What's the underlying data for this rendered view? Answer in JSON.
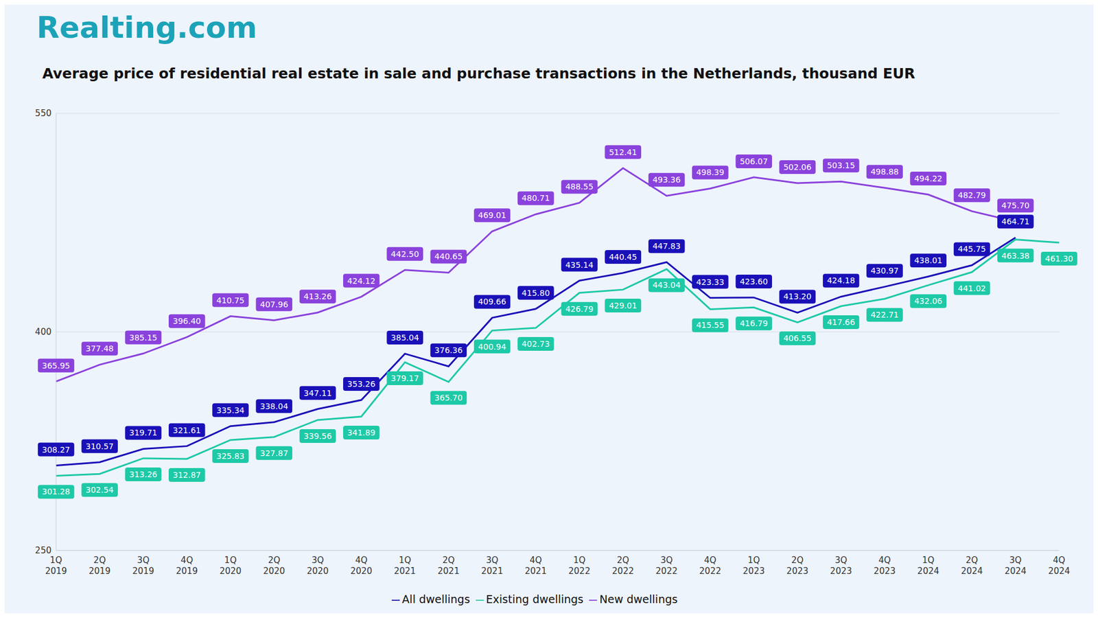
{
  "chart_data": {
    "type": "line",
    "title": "Average price of residential real estate in sale and purchase transactions in the Netherlands, thousand EUR",
    "annotations": [
      "Realting.com"
    ],
    "categories": [
      "1Q 2019",
      "2Q 2019",
      "3Q 2019",
      "4Q 2019",
      "1Q 2020",
      "2Q 2020",
      "3Q 2020",
      "4Q 2020",
      "1Q 2021",
      "2Q 2021",
      "3Q 2021",
      "4Q 2021",
      "1Q 2022",
      "2Q 2022",
      "3Q 2022",
      "4Q 2022",
      "1Q 2023",
      "2Q 2023",
      "3Q 2023",
      "4Q 2023",
      "1Q 2024",
      "2Q 2024",
      "3Q 2024",
      "4Q 2024"
    ],
    "series": [
      {
        "name": "All dwellings",
        "color": "#1a10b8",
        "values": [
          308.27,
          310.57,
          319.71,
          321.61,
          335.34,
          338.04,
          347.11,
          353.26,
          385.04,
          376.36,
          409.66,
          415.8,
          435.14,
          440.45,
          447.83,
          423.33,
          423.6,
          413.2,
          424.18,
          430.97,
          438.01,
          445.75,
          464.71,
          null
        ],
        "value_labels": [
          "308.27",
          "310.57",
          "319.71",
          "321.61",
          "335.34",
          "338.04",
          "347.11",
          "353.26",
          "385.04",
          "376.36",
          "409.66",
          "415.80",
          "435.14",
          "440.45",
          "447.83",
          "423.33",
          "423.60",
          "413.20",
          "424.18",
          "430.97",
          "438.01",
          "445.75",
          "464.71",
          null
        ]
      },
      {
        "name": "New dwellings",
        "color": "#8a42dc",
        "values": [
          365.95,
          377.48,
          385.15,
          396.4,
          410.75,
          407.96,
          413.26,
          424.12,
          442.5,
          440.65,
          469.01,
          480.71,
          488.55,
          512.41,
          493.36,
          498.39,
          506.07,
          502.06,
          503.15,
          498.88,
          494.22,
          482.79,
          475.7,
          null
        ],
        "value_labels": [
          "365.95",
          "377.48",
          "385.15",
          "396.40",
          "410.75",
          "407.96",
          "413.26",
          "424.12",
          "442.50",
          "440.65",
          "469.01",
          "480.71",
          "488.55",
          "512.41",
          "493.36",
          "498.39",
          "506.07",
          "502.06",
          "503.15",
          "498.88",
          "494.22",
          "482.79",
          "475.70",
          null
        ]
      },
      {
        "name": "Existing dwellings",
        "color": "#1dc9a6",
        "values": [
          301.28,
          302.54,
          313.26,
          312.87,
          325.83,
          327.87,
          339.56,
          341.89,
          379.17,
          365.7,
          400.94,
          402.73,
          426.79,
          429.01,
          443.04,
          415.55,
          416.79,
          406.55,
          417.66,
          422.71,
          432.06,
          441.02,
          463.38,
          461.3
        ],
        "value_labels": [
          "301.28",
          "302.54",
          "313.26",
          "312.87",
          "325.83",
          "327.87",
          "339.56",
          "341.89",
          "379.17",
          "365.70",
          "400.94",
          "402.73",
          "426.79",
          "429.01",
          "443.04",
          "415.55",
          "416.79",
          "406.55",
          "417.66",
          "422.71",
          "432.06",
          "441.02",
          "463.38",
          "461.30"
        ]
      }
    ],
    "ylim": [
      250,
      550
    ],
    "yticks": [
      250,
      400,
      550
    ],
    "grid": true,
    "legend": "bottom",
    "data_labels": true
  }
}
